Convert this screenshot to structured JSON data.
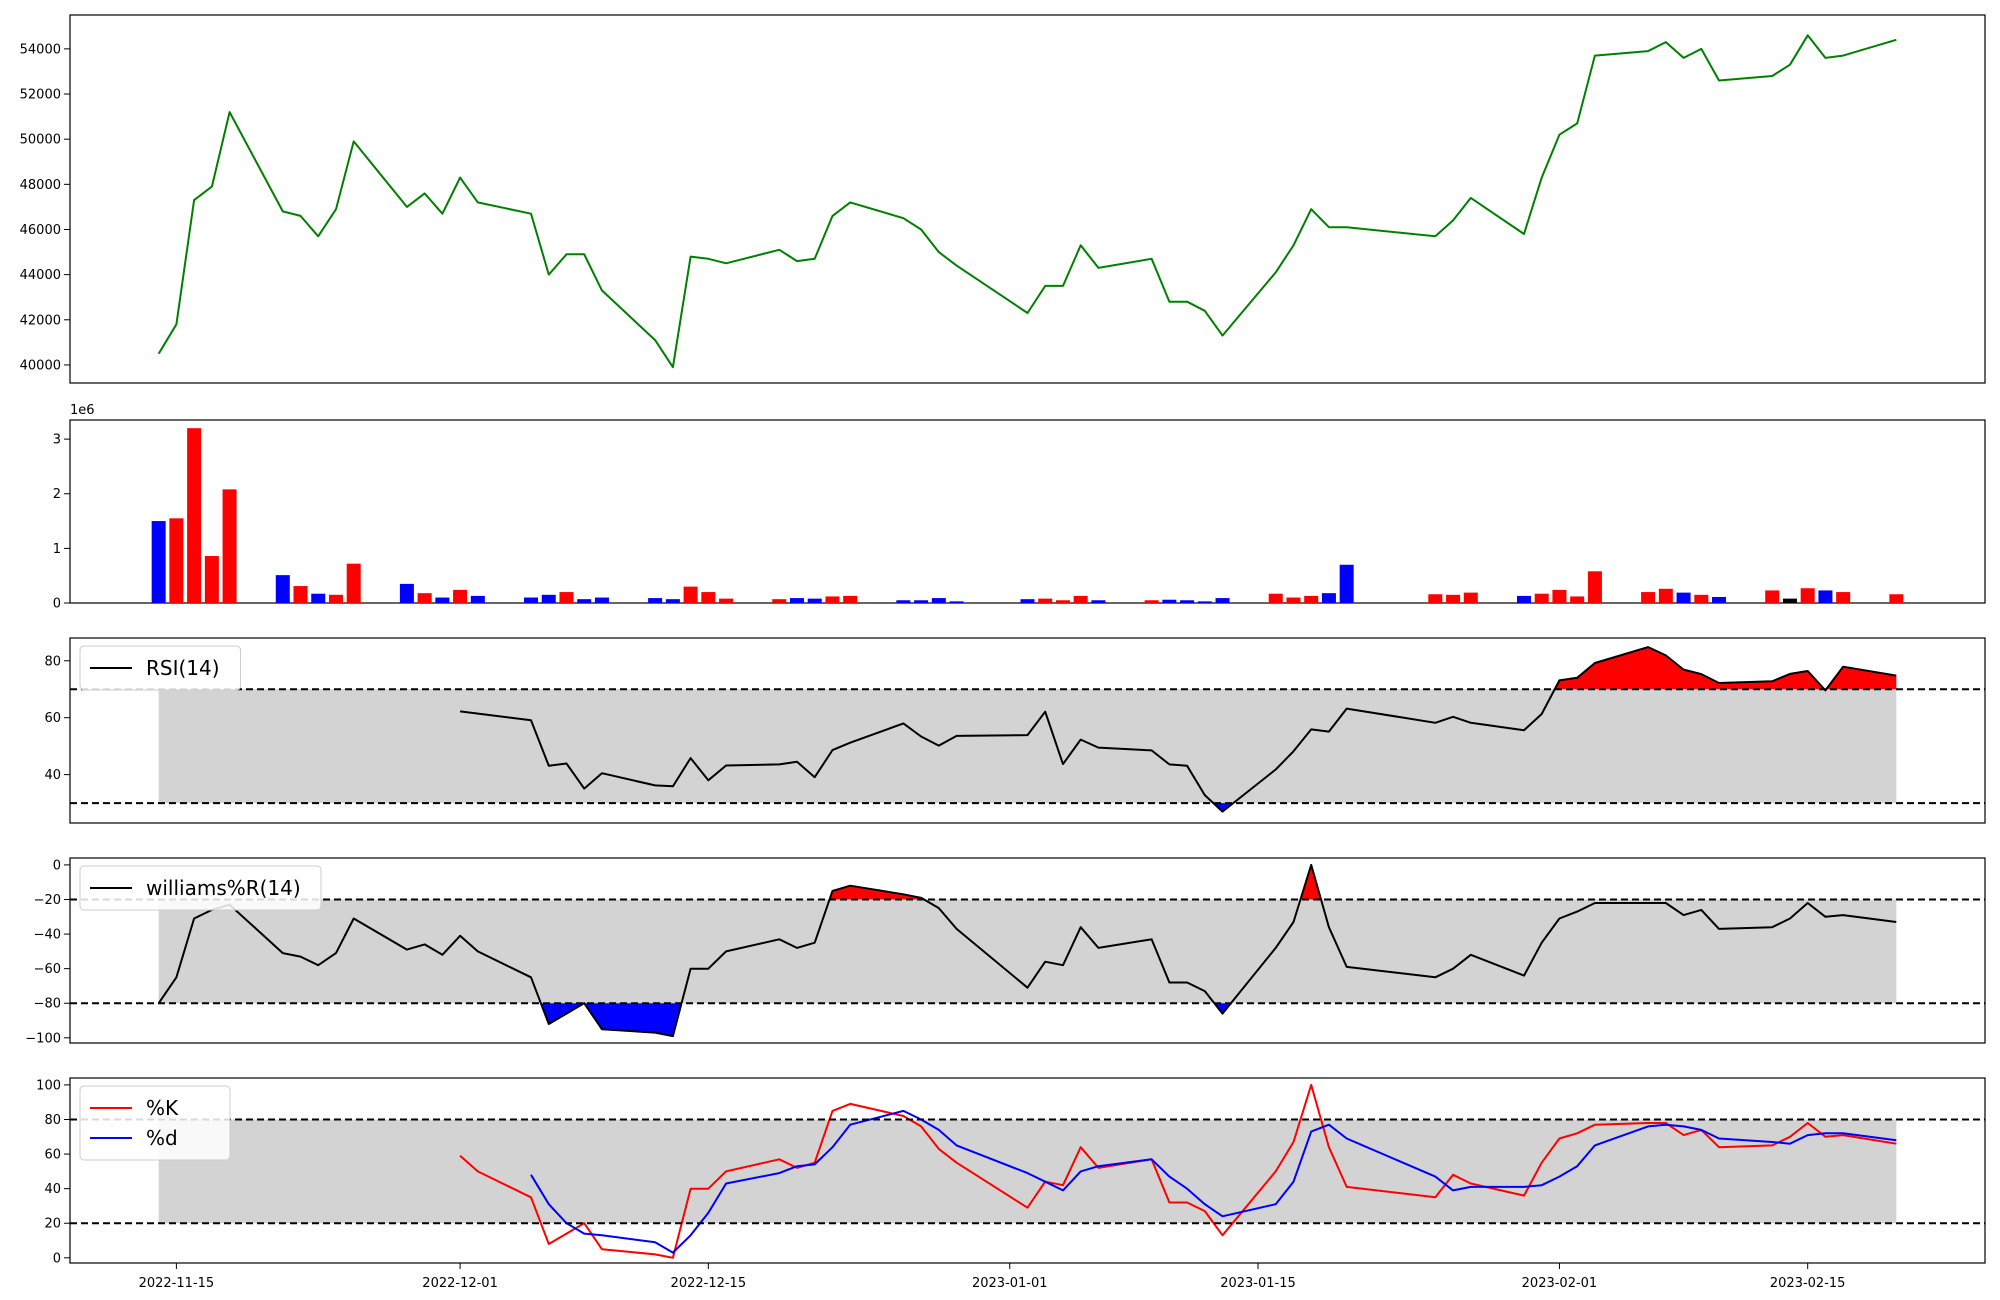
{
  "chart_data": [
    {
      "type": "line",
      "panel": "price",
      "ylim": [
        39200,
        55500
      ],
      "yticks": [
        40000,
        42000,
        44000,
        46000,
        48000,
        50000,
        52000,
        54000
      ],
      "color": "#008000",
      "x": [
        "2022-11-14",
        "2022-11-15",
        "2022-11-16",
        "2022-11-17",
        "2022-11-18",
        "2022-11-21",
        "2022-11-22",
        "2022-11-23",
        "2022-11-24",
        "2022-11-25",
        "2022-11-28",
        "2022-11-29",
        "2022-11-30",
        "2022-12-01",
        "2022-12-02",
        "2022-12-05",
        "2022-12-06",
        "2022-12-07",
        "2022-12-08",
        "2022-12-09",
        "2022-12-12",
        "2022-12-13",
        "2022-12-14",
        "2022-12-15",
        "2022-12-16",
        "2022-12-19",
        "2022-12-20",
        "2022-12-21",
        "2022-12-22",
        "2022-12-23",
        "2022-12-26",
        "2022-12-27",
        "2022-12-28",
        "2022-12-29",
        "2023-01-02",
        "2023-01-03",
        "2023-01-04",
        "2023-01-05",
        "2023-01-06",
        "2023-01-09",
        "2023-01-10",
        "2023-01-11",
        "2023-01-12",
        "2023-01-13",
        "2023-01-16",
        "2023-01-17",
        "2023-01-18",
        "2023-01-19",
        "2023-01-20",
        "2023-01-25",
        "2023-01-26",
        "2023-01-27",
        "2023-01-30",
        "2023-01-31",
        "2023-02-01",
        "2023-02-02",
        "2023-02-03",
        "2023-02-06",
        "2023-02-07",
        "2023-02-08",
        "2023-02-09",
        "2023-02-10",
        "2023-02-13",
        "2023-02-14",
        "2023-02-15",
        "2023-02-16",
        "2023-02-17",
        "2023-02-20"
      ],
      "values": [
        40500,
        41800,
        47300,
        47900,
        51200,
        46800,
        46600,
        45700,
        46900,
        49900,
        47000,
        47600,
        46700,
        48300,
        47200,
        46700,
        44000,
        44900,
        44900,
        43300,
        41100,
        39900,
        44800,
        44700,
        44500,
        45100,
        44600,
        44700,
        46600,
        47200,
        46500,
        46000,
        45000,
        44400,
        42300,
        43500,
        43500,
        45300,
        44300,
        44700,
        42800,
        42800,
        42400,
        41300,
        44100,
        45300,
        46900,
        46100,
        46100,
        45700,
        46400,
        47400,
        45800,
        48300,
        50200,
        50700,
        53700,
        53900,
        54300,
        53600,
        54000,
        52600,
        52800,
        53300,
        54600,
        53600,
        53700,
        54400
      ]
    },
    {
      "type": "bar",
      "panel": "volume",
      "exponent_label": "1e6",
      "ylim": [
        0,
        3.35
      ],
      "yticks": [
        0,
        1,
        2,
        3
      ],
      "colors": {
        "up": "#ff0000",
        "down": "#0000ff",
        "flat": "#000000"
      },
      "x": [
        "2022-11-14",
        "2022-11-15",
        "2022-11-16",
        "2022-11-17",
        "2022-11-18",
        "2022-11-21",
        "2022-11-22",
        "2022-11-23",
        "2022-11-24",
        "2022-11-25",
        "2022-11-28",
        "2022-11-29",
        "2022-11-30",
        "2022-12-01",
        "2022-12-02",
        "2022-12-05",
        "2022-12-06",
        "2022-12-07",
        "2022-12-08",
        "2022-12-09",
        "2022-12-12",
        "2022-12-13",
        "2022-12-14",
        "2022-12-15",
        "2022-12-16",
        "2022-12-19",
        "2022-12-20",
        "2022-12-21",
        "2022-12-22",
        "2022-12-23",
        "2022-12-26",
        "2022-12-27",
        "2022-12-28",
        "2022-12-29",
        "2023-01-02",
        "2023-01-03",
        "2023-01-04",
        "2023-01-05",
        "2023-01-06",
        "2023-01-09",
        "2023-01-10",
        "2023-01-11",
        "2023-01-12",
        "2023-01-13",
        "2023-01-16",
        "2023-01-17",
        "2023-01-18",
        "2023-01-19",
        "2023-01-20",
        "2023-01-25",
        "2023-01-26",
        "2023-01-27",
        "2023-01-30",
        "2023-01-31",
        "2023-02-01",
        "2023-02-02",
        "2023-02-03",
        "2023-02-06",
        "2023-02-07",
        "2023-02-08",
        "2023-02-09",
        "2023-02-10",
        "2023-02-13",
        "2023-02-14",
        "2023-02-15",
        "2023-02-16",
        "2023-02-17",
        "2023-02-20"
      ],
      "values": [
        1.5,
        1.55,
        3.2,
        0.86,
        2.08,
        0.51,
        0.31,
        0.17,
        0.15,
        0.72,
        0.35,
        0.18,
        0.1,
        0.24,
        0.13,
        0.1,
        0.15,
        0.2,
        0.07,
        0.1,
        0.09,
        0.07,
        0.3,
        0.2,
        0.08,
        0.07,
        0.09,
        0.08,
        0.12,
        0.13,
        0.05,
        0.05,
        0.09,
        0.03,
        0.07,
        0.08,
        0.05,
        0.13,
        0.05,
        0.05,
        0.06,
        0.05,
        0.03,
        0.09,
        0.17,
        0.1,
        0.13,
        0.18,
        0.7,
        0.16,
        0.15,
        0.19,
        0.13,
        0.17,
        0.24,
        0.12,
        0.58,
        0.2,
        0.26,
        0.19,
        0.15,
        0.11,
        0.23,
        0.08,
        0.27,
        0.23,
        0.2,
        0.16
      ],
      "direction": [
        "down",
        "up",
        "up",
        "up",
        "up",
        "down",
        "up",
        "down",
        "up",
        "up",
        "down",
        "up",
        "down",
        "up",
        "down",
        "down",
        "down",
        "up",
        "down",
        "down",
        "down",
        "down",
        "up",
        "up",
        "up",
        "up",
        "down",
        "down",
        "up",
        "up",
        "down",
        "down",
        "down",
        "down",
        "down",
        "up",
        "up",
        "up",
        "down",
        "up",
        "down",
        "down",
        "down",
        "down",
        "up",
        "up",
        "up",
        "down",
        "down",
        "up",
        "up",
        "up",
        "down",
        "up",
        "up",
        "up",
        "up",
        "up",
        "up",
        "down",
        "up",
        "down",
        "up",
        "flat",
        "up",
        "down",
        "up",
        "up"
      ]
    },
    {
      "type": "line",
      "panel": "rsi",
      "legend": "RSI(14)",
      "ylim": [
        23,
        88
      ],
      "yticks": [
        40,
        60,
        80
      ],
      "band": [
        30,
        70
      ],
      "x": [
        "2022-12-01",
        "2022-12-05",
        "2022-12-06",
        "2022-12-07",
        "2022-12-08",
        "2022-12-09",
        "2022-12-12",
        "2022-12-13",
        "2022-12-14",
        "2022-12-15",
        "2022-12-16",
        "2022-12-19",
        "2022-12-20",
        "2022-12-21",
        "2022-12-22",
        "2022-12-23",
        "2022-12-26",
        "2022-12-27",
        "2022-12-28",
        "2022-12-29",
        "2023-01-02",
        "2023-01-03",
        "2023-01-04",
        "2023-01-05",
        "2023-01-06",
        "2023-01-09",
        "2023-01-10",
        "2023-01-11",
        "2023-01-12",
        "2023-01-13",
        "2023-01-16",
        "2023-01-17",
        "2023-01-18",
        "2023-01-19",
        "2023-01-20",
        "2023-01-25",
        "2023-01-26",
        "2023-01-27",
        "2023-01-30",
        "2023-01-31",
        "2023-02-01",
        "2023-02-02",
        "2023-02-03",
        "2023-02-06",
        "2023-02-07",
        "2023-02-08",
        "2023-02-09",
        "2023-02-10",
        "2023-02-13",
        "2023-02-14",
        "2023-02-15",
        "2023-02-16",
        "2023-02-17",
        "2023-02-20"
      ],
      "values": [
        62.2,
        59.1,
        43.1,
        43.9,
        35.1,
        40.5,
        36.2,
        35.9,
        45.8,
        38.0,
        43.2,
        43.6,
        44.5,
        39.1,
        48.6,
        51.2,
        58.0,
        53.4,
        50.2,
        53.6,
        53.9,
        62.1,
        43.7,
        52.3,
        49.5,
        48.5,
        43.6,
        43.1,
        32.8,
        27.0,
        41.8,
        48.2,
        55.9,
        55.1,
        63.2,
        58.2,
        60.3,
        58.2,
        55.6,
        61.3,
        73.1,
        74.0,
        79.2,
        84.8,
        81.9,
        76.9,
        75.3,
        72.2,
        72.8,
        75.4,
        76.4,
        69.6,
        77.9,
        74.8
      ]
    },
    {
      "type": "line",
      "panel": "williams",
      "legend": "williams%R(14)",
      "ylim": [
        -103,
        4
      ],
      "yticks": [
        -100,
        -80,
        -60,
        -40,
        -20,
        0
      ],
      "band": [
        -80,
        -20
      ],
      "x": [
        "2022-11-14",
        "2022-11-15",
        "2022-11-16",
        "2022-11-17",
        "2022-11-18",
        "2022-11-21",
        "2022-11-22",
        "2022-11-23",
        "2022-11-24",
        "2022-11-25",
        "2022-11-28",
        "2022-11-29",
        "2022-11-30",
        "2022-12-01",
        "2022-12-02",
        "2022-12-05",
        "2022-12-06",
        "2022-12-07",
        "2022-12-08",
        "2022-12-09",
        "2022-12-12",
        "2022-12-13",
        "2022-12-14",
        "2022-12-15",
        "2022-12-16",
        "2022-12-19",
        "2022-12-20",
        "2022-12-21",
        "2022-12-22",
        "2022-12-23",
        "2022-12-26",
        "2022-12-27",
        "2022-12-28",
        "2022-12-29",
        "2023-01-02",
        "2023-01-03",
        "2023-01-04",
        "2023-01-05",
        "2023-01-06",
        "2023-01-09",
        "2023-01-10",
        "2023-01-11",
        "2023-01-12",
        "2023-01-13",
        "2023-01-16",
        "2023-01-17",
        "2023-01-18",
        "2023-01-19",
        "2023-01-20",
        "2023-01-25",
        "2023-01-26",
        "2023-01-27",
        "2023-01-30",
        "2023-01-31",
        "2023-02-01",
        "2023-02-02",
        "2023-02-03",
        "2023-02-06",
        "2023-02-07",
        "2023-02-08",
        "2023-02-09",
        "2023-02-10",
        "2023-02-13",
        "2023-02-14",
        "2023-02-15",
        "2023-02-16",
        "2023-02-17",
        "2023-02-20"
      ],
      "values": [
        -80,
        -65,
        -31,
        -26,
        -23,
        -51,
        -53,
        -58,
        -51,
        -31,
        -49,
        -46,
        -52,
        -41,
        -50,
        -65,
        -92,
        -86,
        -80,
        -95,
        -97,
        -99,
        -60,
        -60,
        -50,
        -43,
        -48,
        -45,
        -15,
        -12,
        -17,
        -19,
        -25,
        -37,
        -71,
        -56,
        -58,
        -36,
        -48,
        -43,
        -68,
        -68,
        -73,
        -86,
        -48,
        -33,
        0,
        -36,
        -59,
        -65,
        -60,
        -52,
        -64,
        -45,
        -31,
        -27,
        -22,
        -22,
        -22,
        -29,
        -26,
        -37,
        -36,
        -31,
        -22,
        -30,
        -29,
        -33
      ]
    },
    {
      "type": "line",
      "panel": "stochastic",
      "ylim": [
        -3,
        104
      ],
      "yticks": [
        0,
        20,
        40,
        60,
        80,
        100
      ],
      "band": [
        20,
        80
      ],
      "series": [
        {
          "name": "%K",
          "color": "#ff0000",
          "x": [
            "2022-12-01",
            "2022-12-02",
            "2022-12-05",
            "2022-12-06",
            "2022-12-07",
            "2022-12-08",
            "2022-12-09",
            "2022-12-12",
            "2022-12-13",
            "2022-12-14",
            "2022-12-15",
            "2022-12-16",
            "2022-12-19",
            "2022-12-20",
            "2022-12-21",
            "2022-12-22",
            "2022-12-23",
            "2022-12-26",
            "2022-12-27",
            "2022-12-28",
            "2022-12-29",
            "2023-01-02",
            "2023-01-03",
            "2023-01-04",
            "2023-01-05",
            "2023-01-06",
            "2023-01-09",
            "2023-01-10",
            "2023-01-11",
            "2023-01-12",
            "2023-01-13",
            "2023-01-16",
            "2023-01-17",
            "2023-01-18",
            "2023-01-19",
            "2023-01-20",
            "2023-01-25",
            "2023-01-26",
            "2023-01-27",
            "2023-01-30",
            "2023-01-31",
            "2023-02-01",
            "2023-02-02",
            "2023-02-03",
            "2023-02-06",
            "2023-02-07",
            "2023-02-08",
            "2023-02-09",
            "2023-02-10",
            "2023-02-13",
            "2023-02-14",
            "2023-02-15",
            "2023-02-16",
            "2023-02-17",
            "2023-02-20"
          ],
          "values": [
            59,
            50,
            35,
            8,
            14,
            20,
            5,
            2,
            0,
            40,
            40,
            50,
            57,
            52,
            55,
            85,
            89,
            82,
            76,
            63,
            55,
            29,
            44,
            42,
            64,
            52,
            57,
            32,
            32,
            27,
            13,
            50,
            67,
            100,
            64,
            41,
            35,
            48,
            43,
            36,
            55,
            69,
            72,
            77,
            78,
            78,
            71,
            74,
            64,
            65,
            70,
            78,
            70,
            71,
            66
          ]
        },
        {
          "name": "%d",
          "color": "#0000ff",
          "x": [
            "2022-12-05",
            "2022-12-06",
            "2022-12-07",
            "2022-12-08",
            "2022-12-09",
            "2022-12-12",
            "2022-12-13",
            "2022-12-14",
            "2022-12-15",
            "2022-12-16",
            "2022-12-19",
            "2022-12-20",
            "2022-12-21",
            "2022-12-22",
            "2022-12-23",
            "2022-12-26",
            "2022-12-27",
            "2022-12-28",
            "2022-12-29",
            "2023-01-02",
            "2023-01-03",
            "2023-01-04",
            "2023-01-05",
            "2023-01-06",
            "2023-01-09",
            "2023-01-10",
            "2023-01-11",
            "2023-01-12",
            "2023-01-13",
            "2023-01-16",
            "2023-01-17",
            "2023-01-18",
            "2023-01-19",
            "2023-01-20",
            "2023-01-25",
            "2023-01-26",
            "2023-01-27",
            "2023-01-30",
            "2023-01-31",
            "2023-02-01",
            "2023-02-02",
            "2023-02-03",
            "2023-02-06",
            "2023-02-07",
            "2023-02-08",
            "2023-02-09",
            "2023-02-10",
            "2023-02-13",
            "2023-02-14",
            "2023-02-15",
            "2023-02-16",
            "2023-02-17",
            "2023-02-20"
          ],
          "values": [
            48,
            31,
            20,
            14,
            13,
            9,
            3,
            13,
            26,
            43,
            49,
            53,
            54,
            64,
            77,
            85,
            80,
            74,
            65,
            49,
            44,
            39,
            50,
            53,
            57,
            47,
            40,
            31,
            24,
            31,
            44,
            73,
            77,
            69,
            47,
            39,
            41,
            41,
            42,
            47,
            53,
            65,
            76,
            77,
            76,
            74,
            69,
            67,
            66,
            71,
            72,
            72,
            68
          ]
        }
      ]
    }
  ],
  "xaxis": {
    "tick_dates": [
      "2022-11-15",
      "2022-12-01",
      "2022-12-15",
      "2023-01-01",
      "2023-01-15",
      "2023-02-01",
      "2023-02-15"
    ],
    "tick_labels": [
      "2022-11-15",
      "2022-12-01",
      "2022-12-15",
      "2023-01-01",
      "2023-01-15",
      "2023-02-01",
      "2023-02-15"
    ],
    "range": [
      "2022-11-09",
      "2023-02-25"
    ]
  },
  "styles": {
    "band_fill": "#d3d3d3",
    "overbought_fill": "#ff0000",
    "oversold_fill": "#0000ff"
  }
}
